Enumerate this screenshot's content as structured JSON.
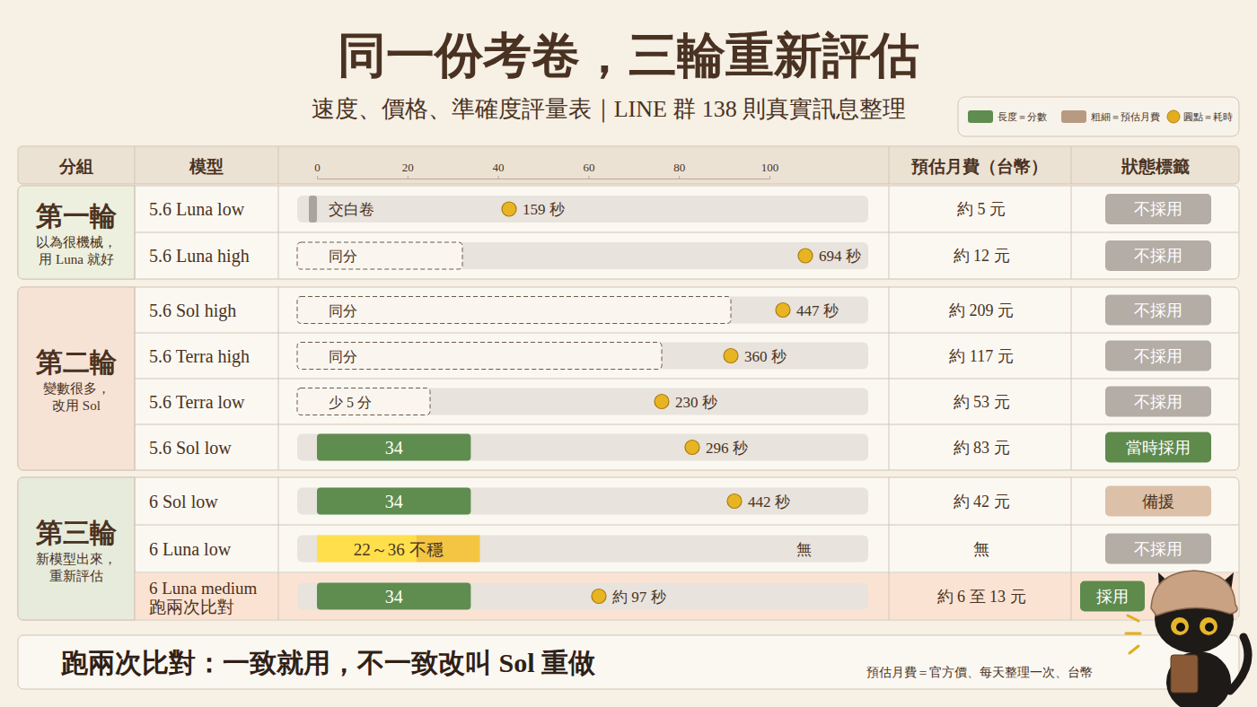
{
  "header": {
    "title": "同一份考卷，三輪重新評估",
    "subtitle": "速度、價格、準確度評量表｜LINE 群 138 則真實訊息整理"
  },
  "legend": [
    {
      "label": "長度＝分數",
      "color": "#5f8c4f",
      "marker": "bar"
    },
    {
      "label": "粗細＝預估月費",
      "color": "#b89a82",
      "marker": "bar"
    },
    {
      "label": "圓點＝耗時",
      "color": "#e2ad1f",
      "marker": "circle"
    }
  ],
  "columns": [
    "分組",
    "模型",
    "預估月費（台幣）",
    "狀態標籤"
  ],
  "groups": [
    {
      "title": "第一輪",
      "note": "以為很機械，\n用 Luna 就好",
      "color": "#eef0df",
      "rows": [
        {
          "time": "159 秒",
          "marker": "circle",
          "cost": "約 5 元",
          "status": "不採用",
          "color": "#b3ada6"
        },
        {
          "time": "694 秒",
          "marker": "circle",
          "cost": "約 12 元",
          "status": "不採用",
          "color": "#b3ada6"
        }
      ]
    },
    {
      "title": "第二輪",
      "note": "變數很多，\n改用 Sol",
      "color": "#f6e3d6",
      "rows": [
        {
          "time": "447 秒",
          "marker": "circle",
          "cost": "約 209 元",
          "status": "不採用",
          "color": "#b3ada6"
        },
        {
          "time": "360 秒",
          "marker": "circle",
          "cost": "約 117 元",
          "status": "不採用",
          "color": "#b3ada6"
        },
        {
          "time": "230 秒",
          "marker": "circle",
          "cost": "約 53 元",
          "status": "不採用",
          "color": "#b3ada6"
        },
        {
          "time": "296 秒",
          "marker": "circle",
          "cost": "約 83 元",
          "status": "當時採用",
          "color": "#5e8a4c"
        }
      ]
    },
    {
      "title": "第三輪",
      "note": "新模型出來，\n重新評估",
      "color": "#e7ebdb",
      "rows": [
        {
          "time": "442 秒",
          "marker": "circle",
          "cost": "約 42 元",
          "status": "備援",
          "color": "#dcc0a7"
        },
        {
          "time": "無",
          "marker": "none",
          "cost": "無",
          "status": "不採用",
          "color": "#b3ada6"
        },
        {
          "time": "約 97 秒",
          "marker": "circle",
          "cost": "約 6 至 13 元",
          "status": "採用",
          "color": "#5e8a4c"
        }
      ]
    }
  ],
  "chart_data": {
    "type": "bar",
    "orientation": "horizontal",
    "categories": [
      "5.6 Luna low",
      "5.6 Luna high",
      "5.6 Sol high",
      "5.6 Terra high",
      "5.6 Terra low",
      "5.6 Sol low",
      "6 Sol low",
      "6 Luna low",
      "6 Luna medium\n跑兩次比對"
    ],
    "values": [
      0,
      null,
      null,
      null,
      null,
      34,
      34,
      null,
      34
    ],
    "ranges": [
      null,
      null,
      null,
      null,
      null,
      null,
      null,
      [
        22,
        36
      ],
      null
    ],
    "annotations": [
      "交白卷",
      "同分",
      "同分",
      "同分",
      "少 5 分",
      null,
      null,
      "22～36 不穩",
      null
    ],
    "colors": [
      "#a9a49e",
      null,
      null,
      null,
      null,
      "#5f8c4f",
      "#5f8c4f",
      "#f4c542",
      "#5f8c4f"
    ],
    "xlim": [
      0,
      100
    ],
    "xticks": [
      0,
      20,
      40,
      60,
      80,
      100
    ],
    "data_labels": true,
    "grid": false
  },
  "conclusion": "跑兩次比對：一致就用，不一致改叫 Sol 重做",
  "footnote": "預估月費＝官方價、每天整理一次、台幣"
}
